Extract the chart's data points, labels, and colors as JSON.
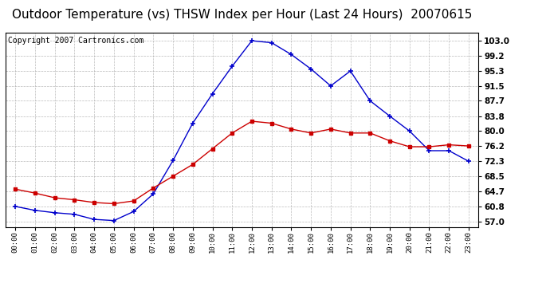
{
  "title": "Outdoor Temperature (vs) THSW Index per Hour (Last 24 Hours)  20070615",
  "copyright": "Copyright 2007 Cartronics.com",
  "hours": [
    "00:00",
    "01:00",
    "02:00",
    "03:00",
    "04:00",
    "05:00",
    "06:00",
    "07:00",
    "08:00",
    "09:00",
    "10:00",
    "11:00",
    "12:00",
    "13:00",
    "14:00",
    "15:00",
    "16:00",
    "17:00",
    "18:00",
    "19:00",
    "20:00",
    "21:00",
    "22:00",
    "23:00"
  ],
  "temp": [
    65.2,
    64.2,
    63.0,
    62.5,
    61.8,
    61.5,
    62.2,
    65.5,
    68.5,
    71.5,
    75.5,
    79.5,
    82.5,
    82.0,
    80.5,
    79.5,
    80.5,
    79.5,
    79.5,
    77.5,
    76.0,
    76.0,
    76.5,
    76.2
  ],
  "thsw": [
    60.8,
    59.8,
    59.2,
    58.8,
    57.5,
    57.2,
    59.5,
    64.0,
    72.5,
    82.0,
    89.5,
    96.5,
    103.0,
    102.5,
    99.5,
    95.8,
    91.5,
    95.3,
    87.7,
    83.8,
    80.0,
    75.0,
    75.0,
    72.3
  ],
  "temp_color": "#cc0000",
  "thsw_color": "#0000cc",
  "bg_color": "#ffffff",
  "grid_color": "#aaaaaa",
  "yticks": [
    57.0,
    60.8,
    64.7,
    68.5,
    72.3,
    76.2,
    80.0,
    83.8,
    87.7,
    91.5,
    95.3,
    99.2,
    103.0
  ],
  "ymin": 55.5,
  "ymax": 105.0,
  "title_fontsize": 11,
  "copyright_fontsize": 7
}
